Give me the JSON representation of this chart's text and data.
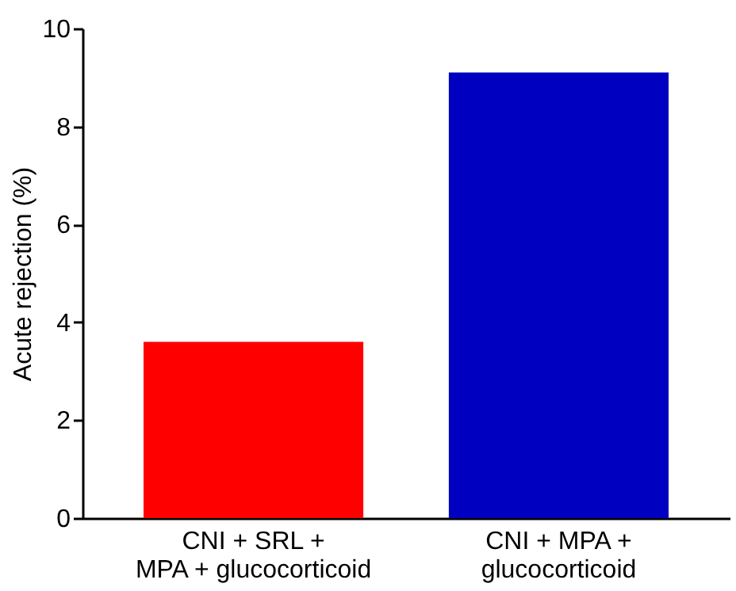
{
  "chart_data": {
    "type": "bar",
    "ylabel": "Acute rejection (%)",
    "categories": [
      "CNI + SRL +\nMPA + glucocorticoid",
      "CNI + MPA +\nglucocorticoid"
    ],
    "values": [
      3.6,
      9.1
    ],
    "colors": [
      "#ff0000",
      "#0000c0"
    ],
    "ylim": [
      0,
      10
    ],
    "yticks": [
      0,
      2,
      4,
      6,
      8,
      10
    ],
    "grid": false,
    "legend": false
  }
}
